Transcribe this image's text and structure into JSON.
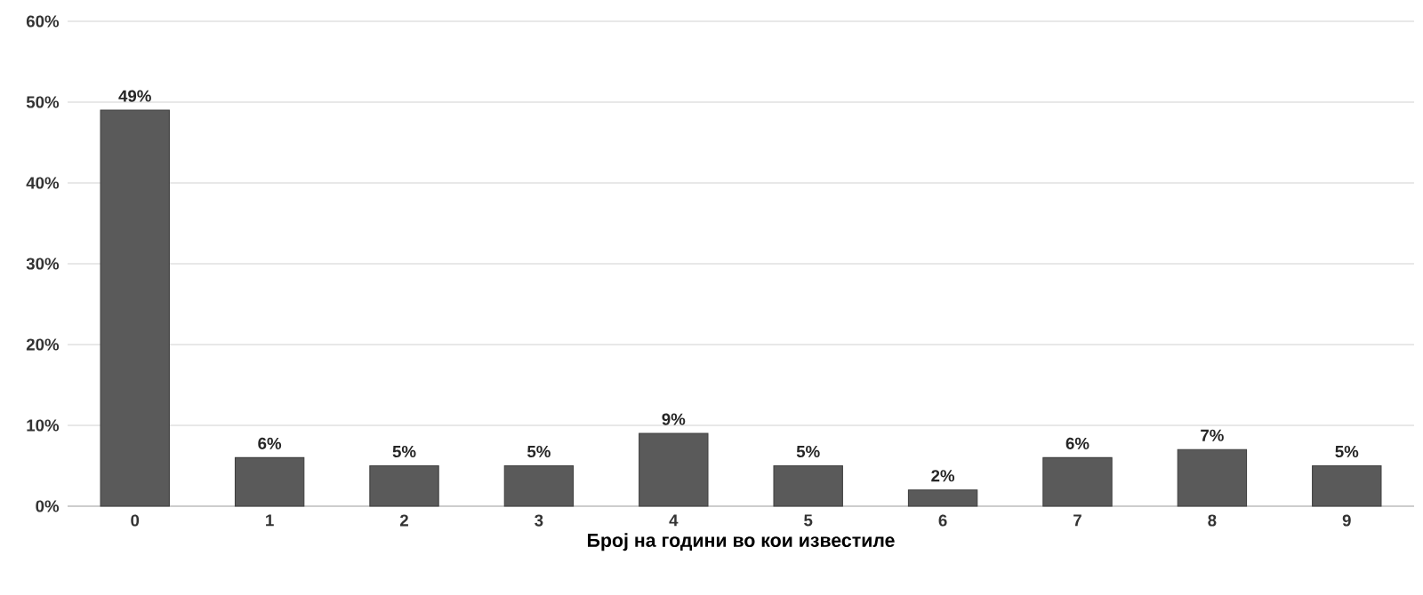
{
  "chart_data": {
    "type": "bar",
    "xlabel": "Број на години во кои известиле",
    "categories": [
      "0",
      "1",
      "2",
      "3",
      "4",
      "5",
      "6",
      "7",
      "8",
      "9"
    ],
    "values": [
      49,
      6,
      5,
      5,
      9,
      5,
      2,
      6,
      7,
      5
    ],
    "color": "#5a5a5a",
    "data_labels": true,
    "value_labels": [
      "49%",
      "6%",
      "5%",
      "5%",
      "9%",
      "5%",
      "2%",
      "6%",
      "7%",
      "5%"
    ],
    "ylim": [
      0,
      60
    ],
    "yticks": [
      {
        "value": 0,
        "label": "0%"
      },
      {
        "value": 10,
        "label": "10%"
      },
      {
        "value": 20,
        "label": "20%"
      },
      {
        "value": 30,
        "label": "30%"
      },
      {
        "value": 40,
        "label": "40%"
      },
      {
        "value": 50,
        "label": "50%"
      },
      {
        "value": 60,
        "label": "60%"
      }
    ],
    "grid": "y"
  }
}
